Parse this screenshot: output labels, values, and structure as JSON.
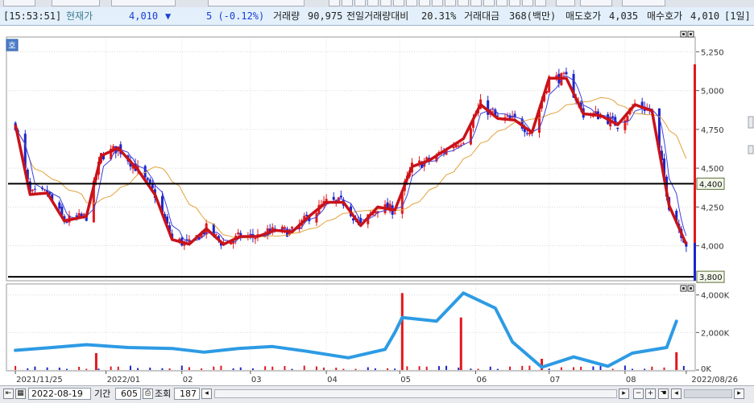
{
  "info": {
    "time": "[15:53:51]",
    "price_label": "현재가",
    "price": "4,010",
    "arrow": "▼",
    "change": "5 (-0.12%)",
    "volume_label": "거래량",
    "volume": "90,975",
    "prev_vol_ratio_label": "전일거래량대비",
    "prev_vol_ratio": "20.31%",
    "amount_label": "거래대금",
    "amount": "368(백만)",
    "ask_label": "매도호가",
    "ask": "4,035",
    "bid_label": "매수호가",
    "bid": "4,010",
    "unit": "[1일]"
  },
  "panel_badge": "호",
  "bottom": {
    "date": "2022-08-19",
    "period_label": "기간",
    "period": "605",
    "query_label": "조회",
    "query": "187"
  },
  "colors": {
    "up": "#e0191d",
    "down": "#1d25c9",
    "ma_thick": "#c8121a",
    "ma_thin": "#3a3fd8",
    "ma_long": "#e2a23a",
    "volume_line": "#2d9be4",
    "level_line": "#000000"
  },
  "chart_data": [
    {
      "type": "candlestick",
      "ylim": [
        3780,
        5340
      ],
      "y_ticks": [
        "5,250",
        "5,000",
        "4,750",
        "4,500",
        "4,250",
        "4,000"
      ],
      "y_tick_values": [
        5250,
        5000,
        4750,
        4500,
        4250,
        4000
      ],
      "horizontal_levels": [
        {
          "value": 4400,
          "label": "4,400"
        },
        {
          "value": 3800,
          "label": "3,800"
        }
      ],
      "x_labels": [
        "2021/11/25",
        "2022/01",
        "02",
        "03",
        "04",
        "05",
        "06",
        "07",
        "08",
        "2022/08/26"
      ],
      "closing_trend": [
        {
          "date": "2021-11-25",
          "value": 4780
        },
        {
          "date": "2021-12-01",
          "value": 4330
        },
        {
          "date": "2021-12-08",
          "value": 4340
        },
        {
          "date": "2021-12-15",
          "value": 4160
        },
        {
          "date": "2021-12-24",
          "value": 4190
        },
        {
          "date": "2021-12-30",
          "value": 4580
        },
        {
          "date": "2022-01-06",
          "value": 4630
        },
        {
          "date": "2022-01-14",
          "value": 4490
        },
        {
          "date": "2022-01-21",
          "value": 4330
        },
        {
          "date": "2022-01-28",
          "value": 4040
        },
        {
          "date": "2022-02-04",
          "value": 4010
        },
        {
          "date": "2022-02-11",
          "value": 4110
        },
        {
          "date": "2022-02-18",
          "value": 4010
        },
        {
          "date": "2022-02-25",
          "value": 4060
        },
        {
          "date": "2022-03-04",
          "value": 4060
        },
        {
          "date": "2022-03-11",
          "value": 4100
        },
        {
          "date": "2022-03-18",
          "value": 4090
        },
        {
          "date": "2022-03-25",
          "value": 4190
        },
        {
          "date": "2022-04-01",
          "value": 4280
        },
        {
          "date": "2022-04-08",
          "value": 4280
        },
        {
          "date": "2022-04-15",
          "value": 4130
        },
        {
          "date": "2022-04-22",
          "value": 4250
        },
        {
          "date": "2022-04-29",
          "value": 4230
        },
        {
          "date": "2022-05-06",
          "value": 4510
        },
        {
          "date": "2022-05-13",
          "value": 4550
        },
        {
          "date": "2022-05-20",
          "value": 4620
        },
        {
          "date": "2022-05-27",
          "value": 4690
        },
        {
          "date": "2022-06-03",
          "value": 4910
        },
        {
          "date": "2022-06-10",
          "value": 4820
        },
        {
          "date": "2022-06-17",
          "value": 4810
        },
        {
          "date": "2022-06-24",
          "value": 4730
        },
        {
          "date": "2022-07-01",
          "value": 5080
        },
        {
          "date": "2022-07-08",
          "value": 5080
        },
        {
          "date": "2022-07-15",
          "value": 4850
        },
        {
          "date": "2022-07-22",
          "value": 4840
        },
        {
          "date": "2022-07-29",
          "value": 4780
        },
        {
          "date": "2022-08-05",
          "value": 4910
        },
        {
          "date": "2022-08-12",
          "value": 4870
        },
        {
          "date": "2022-08-19",
          "value": 4260
        },
        {
          "date": "2022-08-26",
          "value": 4010
        }
      ],
      "volume_spikes": [
        {
          "date": "2021-12-28",
          "value": 900
        },
        {
          "date": "2022-05-02",
          "value": 4100
        },
        {
          "date": "2022-05-26",
          "value": 2800
        },
        {
          "date": "2022-06-28",
          "value": 600
        },
        {
          "date": "2022-08-22",
          "value": 950
        }
      ]
    },
    {
      "type": "line",
      "ylim": [
        0,
        4500
      ],
      "y_ticks": [
        "4,000K",
        "2,000K",
        "0K"
      ],
      "y_tick_values": [
        4000,
        2000,
        0
      ],
      "series": [
        {
          "points": [
            {
              "date": "2021-11-25",
              "value": 1050
            },
            {
              "date": "2021-12-10",
              "value": 1200
            },
            {
              "date": "2021-12-24",
              "value": 1350
            },
            {
              "date": "2022-01-10",
              "value": 1200
            },
            {
              "date": "2022-01-28",
              "value": 1150
            },
            {
              "date": "2022-02-10",
              "value": 950
            },
            {
              "date": "2022-02-24",
              "value": 1150
            },
            {
              "date": "2022-03-10",
              "value": 1250
            },
            {
              "date": "2022-03-24",
              "value": 1000
            },
            {
              "date": "2022-04-10",
              "value": 650
            },
            {
              "date": "2022-04-25",
              "value": 1100
            },
            {
              "date": "2022-04-29",
              "value": 2000
            },
            {
              "date": "2022-05-02",
              "value": 2800
            },
            {
              "date": "2022-05-16",
              "value": 2600
            },
            {
              "date": "2022-05-27",
              "value": 4100
            },
            {
              "date": "2022-06-09",
              "value": 3300
            },
            {
              "date": "2022-06-16",
              "value": 1500
            },
            {
              "date": "2022-06-28",
              "value": 150
            },
            {
              "date": "2022-07-11",
              "value": 700
            },
            {
              "date": "2022-07-25",
              "value": 200
            },
            {
              "date": "2022-08-04",
              "value": 900
            },
            {
              "date": "2022-08-18",
              "value": 1200
            },
            {
              "date": "2022-08-22",
              "value": 2600
            }
          ]
        }
      ]
    }
  ]
}
